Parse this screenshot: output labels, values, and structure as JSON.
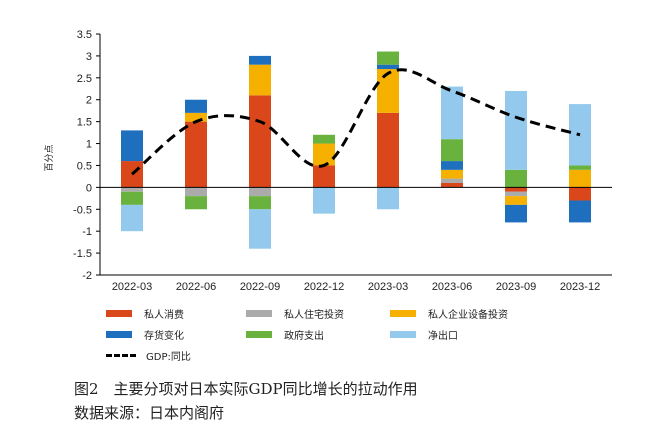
{
  "chart_data": {
    "type": "bar",
    "stacked": true,
    "categories": [
      "2022-03",
      "2022-06",
      "2022-09",
      "2022-12",
      "2023-03",
      "2023-06",
      "2023-09",
      "2023-12"
    ],
    "ylabel": "百分点",
    "ylim": [
      -2,
      3.5
    ],
    "yticks": [
      "3.5",
      "3",
      "2.5",
      "2",
      "1.5",
      "1",
      "0.5",
      "0",
      "-0.5",
      "-1",
      "-1.5",
      "-2"
    ],
    "series": [
      {
        "name": "私人消费",
        "color": "#d9471b",
        "values": [
          0.6,
          1.5,
          2.1,
          0.5,
          1.7,
          0.1,
          -0.1,
          -0.3
        ]
      },
      {
        "name": "私人住宅投资",
        "color": "#ababab",
        "values": [
          -0.1,
          -0.2,
          -0.2,
          0.0,
          0.0,
          0.1,
          -0.1,
          0.0
        ]
      },
      {
        "name": "私人企业设备投资",
        "color": "#f5b000",
        "values": [
          0.0,
          0.2,
          0.7,
          0.5,
          1.0,
          0.2,
          -0.2,
          0.4
        ]
      },
      {
        "name": "存货变化",
        "color": "#1f6fbf",
        "values": [
          0.7,
          0.3,
          0.2,
          0.0,
          0.1,
          0.2,
          -0.4,
          -0.5
        ]
      },
      {
        "name": "政府支出",
        "color": "#6ab23e",
        "values": [
          -0.3,
          -0.3,
          -0.3,
          0.2,
          0.3,
          0.5,
          0.4,
          0.1
        ]
      },
      {
        "name": "净出口",
        "color": "#92c9ec",
        "values": [
          -0.6,
          0.0,
          -0.9,
          -0.6,
          -0.5,
          1.2,
          1.8,
          1.4
        ]
      }
    ],
    "line": {
      "name": "GDP:同比",
      "color": "#000000",
      "style": "dashed",
      "values": [
        0.3,
        1.5,
        1.5,
        0.5,
        2.6,
        2.2,
        1.6,
        1.2
      ]
    },
    "legend_position": "bottom",
    "grid": false
  },
  "caption": {
    "title": "图2　主要分项对日本实际GDP同比增长的拉动作用",
    "source": "数据来源：日本内阁府"
  }
}
